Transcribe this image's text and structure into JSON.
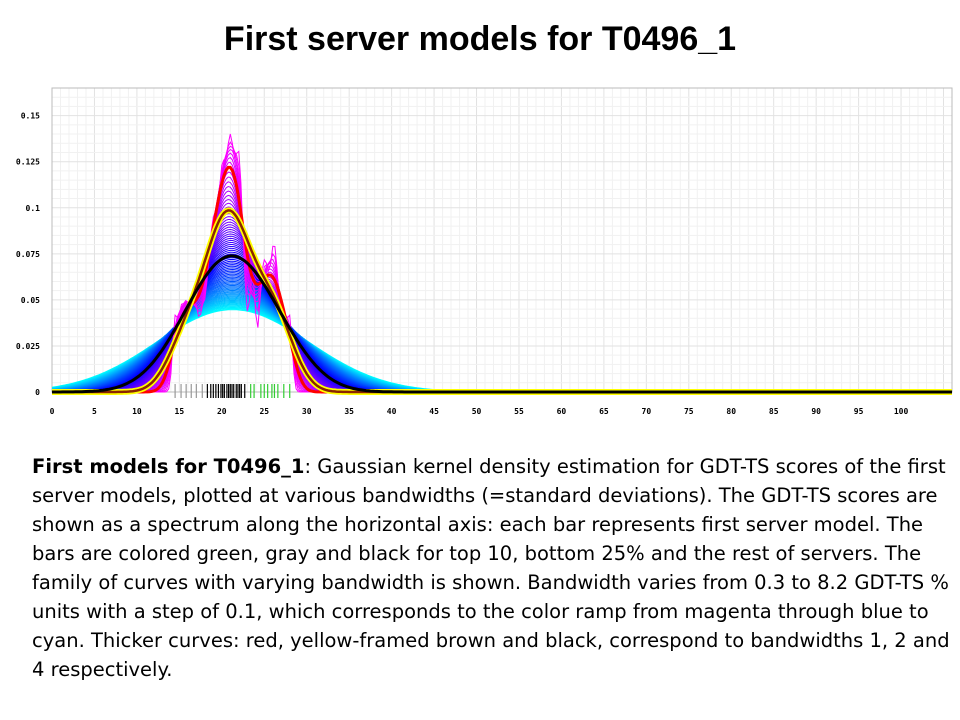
{
  "title": "First server models for T0496_1",
  "caption": {
    "lead": "First models for T0496_1",
    "body": ": Gaussian kernel density estimation for GDT-TS scores of the first server models, plotted at various bandwidths (=standard deviations). The GDT-TS scores are shown as a spectrum along the horizontal axis: each bar represents first server model. The bars are colored green, gray and black for top 10, bottom 25% and the rest of servers. The family of curves with varying bandwidth is shown. Bandwidth varies from 0.3 to 8.2 GDT-TS % units with a step of 0.1, which corresponds to the color ramp from magenta through blue to cyan. Thicker curves: red, yellow-framed brown and black, correspond to bandwidths 1, 2 and 4 respectively."
  },
  "chart_data": {
    "type": "line",
    "title": "",
    "xlabel": "",
    "ylabel": "",
    "xlim": [
      0,
      106
    ],
    "ylim": [
      0,
      0.165
    ],
    "x_ticks": [
      "0",
      "5",
      "10",
      "15",
      "20",
      "25",
      "30",
      "35",
      "40",
      "45",
      "50",
      "55",
      "60",
      "65",
      "70",
      "75",
      "80",
      "85",
      "90",
      "95",
      "100"
    ],
    "y_ticks": [
      "0",
      "0.025",
      "0.05",
      "0.075",
      "0.1",
      "0.125",
      "0.15"
    ],
    "grid": true,
    "bandwidth_range": [
      0.3,
      8.2
    ],
    "bandwidth_step": 0.1,
    "ramp_colors": [
      "#ff00ff",
      "#0000ff",
      "#00ffff"
    ],
    "highlight_curves": [
      {
        "bandwidth": 1,
        "color": "#ff0000"
      },
      {
        "bandwidth": 2,
        "color": "#8b2500",
        "frame": "#ffff00"
      },
      {
        "bandwidth": 4,
        "color": "#000000"
      }
    ],
    "score_bars": {
      "gray": [
        14.5,
        15.2,
        15.8,
        16.4,
        17.0,
        17.7
      ],
      "black": [
        18.3,
        18.7,
        19.0,
        19.3,
        19.6,
        19.9,
        20.1,
        20.3,
        20.6,
        20.8,
        21.0,
        21.2,
        21.4,
        21.7,
        21.9,
        22.1,
        22.3,
        22.7
      ],
      "green": [
        23.4,
        23.8,
        24.6,
        25.0,
        25.4,
        25.9,
        26.2,
        26.6,
        27.3,
        28.0
      ]
    }
  }
}
